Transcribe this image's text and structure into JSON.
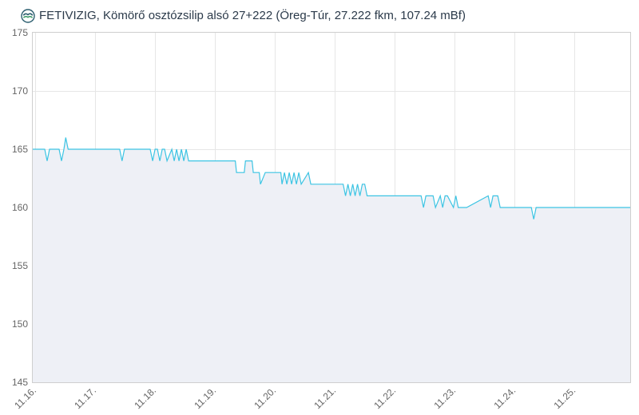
{
  "header": {
    "title": "FETIVIZIG, Kömörő osztózsilip alsó 27+222 (Öreg-Túr, 27.222 fkm, 107.24 mBf)",
    "logo_icon": "fetivizig-logo-icon"
  },
  "colors": {
    "line": "#3cc4e3",
    "area": "#eef0f6",
    "grid": "#e6e6e6",
    "axis": "#cfcfcf",
    "text": "#666666",
    "title": "#2b3a4a"
  },
  "chart_data": {
    "type": "line",
    "title": "FETIVIZIG, Kömörő osztózsilip alsó 27+222 (Öreg-Túr, 27.222 fkm, 107.24 mBf)",
    "xlabel": "",
    "ylabel": "",
    "ylim": [
      145,
      175
    ],
    "yticks": [
      145,
      150,
      155,
      160,
      165,
      170,
      175
    ],
    "xlim": [
      -0.04,
      9.93
    ],
    "xticks": [
      0,
      1,
      2,
      3,
      4,
      5,
      6,
      7,
      8,
      9
    ],
    "xtick_labels": [
      "11.16.",
      "11.17.",
      "11.18.",
      "11.19.",
      "11.20.",
      "11.21.",
      "11.22.",
      "11.23.",
      "11.24.",
      "11.25."
    ],
    "grid": true,
    "legend": "none",
    "series": [
      {
        "x_unit": "days from 11.16. 00:00",
        "x": [
          -0.04,
          0.16,
          0.2,
          0.24,
          0.4,
          0.44,
          0.48,
          0.51,
          0.55,
          0.63,
          1.41,
          1.45,
          1.49,
          1.92,
          1.96,
          2.0,
          2.04,
          2.08,
          2.12,
          2.16,
          2.2,
          2.28,
          2.32,
          2.36,
          2.4,
          2.44,
          2.48,
          2.52,
          2.56,
          2.64,
          3.34,
          3.36,
          3.49,
          3.51,
          3.62,
          3.64,
          3.74,
          3.76,
          3.84,
          3.86,
          3.88,
          3.9,
          3.92,
          4.1,
          4.12,
          4.16,
          4.2,
          4.24,
          4.28,
          4.32,
          4.36,
          4.4,
          4.44,
          4.56,
          4.6,
          4.64,
          5.14,
          5.18,
          5.22,
          5.26,
          5.3,
          5.34,
          5.38,
          5.42,
          5.46,
          5.5,
          5.54,
          5.58,
          5.62,
          6.44,
          6.48,
          6.52,
          6.64,
          6.68,
          6.76,
          6.8,
          6.84,
          6.88,
          6.98,
          7.02,
          7.06,
          7.12,
          7.16,
          7.2,
          7.56,
          7.6,
          7.64,
          7.72,
          7.76,
          7.8,
          8.28,
          8.32,
          8.36,
          9.93
        ],
        "values": [
          165,
          165,
          164,
          165,
          165,
          164,
          165,
          166,
          165,
          165,
          165,
          164,
          165,
          165,
          164,
          165,
          165,
          164,
          165,
          165,
          164,
          165,
          164,
          165,
          164,
          165,
          164,
          165,
          164,
          164,
          164,
          163,
          163,
          164,
          164,
          163,
          163,
          162,
          163,
          163,
          163,
          163,
          163,
          163,
          162,
          163,
          162,
          163,
          162,
          163,
          162,
          163,
          162,
          163,
          162,
          162,
          162,
          161,
          162,
          161,
          162,
          161,
          162,
          161,
          162,
          162,
          161,
          161,
          161,
          161,
          160,
          161,
          161,
          160,
          161,
          160,
          161,
          161,
          160,
          161,
          160,
          160,
          160,
          160,
          161,
          160,
          161,
          161,
          160,
          160,
          160,
          159,
          160,
          160
        ]
      }
    ]
  }
}
